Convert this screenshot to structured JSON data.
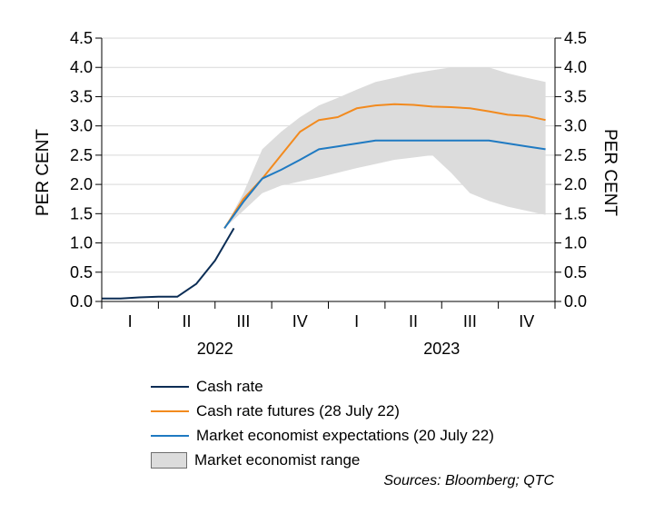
{
  "chart_data": {
    "type": "line",
    "title": "",
    "ylabel_left": "PER CENT",
    "ylabel_right": "PER CENT",
    "ylim": [
      0,
      4.5
    ],
    "yticks": [
      "0.0",
      "0.5",
      "1.0",
      "1.5",
      "2.0",
      "2.5",
      "3.0",
      "3.5",
      "4.0",
      "4.5"
    ],
    "quarters": [
      "I",
      "II",
      "III",
      "IV",
      "I",
      "II",
      "III",
      "IV"
    ],
    "years": [
      {
        "label": "2022",
        "quarter_span": [
          0,
          4
        ]
      },
      {
        "label": "2023",
        "quarter_span": [
          4,
          8
        ]
      }
    ],
    "x_units": "months since start of 2022",
    "xlim": [
      0,
      24
    ],
    "grid": "horizontal",
    "legend_position": "bottom",
    "series": [
      {
        "name": "Market economist range",
        "kind": "band",
        "color": "#dcdcdc",
        "upper": [
          [
            6.5,
            1.25
          ],
          [
            7.5,
            1.85
          ],
          [
            8.5,
            2.6
          ],
          [
            9.5,
            2.9
          ],
          [
            10.5,
            3.15
          ],
          [
            11.5,
            3.35
          ],
          [
            12.5,
            3.48
          ],
          [
            13.5,
            3.62
          ],
          [
            14.5,
            3.75
          ],
          [
            15.5,
            3.82
          ],
          [
            16.5,
            3.9
          ],
          [
            17.5,
            3.95
          ],
          [
            18.5,
            4.0
          ],
          [
            19.5,
            4.0
          ],
          [
            20.5,
            4.0
          ],
          [
            21.5,
            3.9
          ],
          [
            22.5,
            3.82
          ],
          [
            23.5,
            3.75
          ]
        ],
        "lower": [
          [
            6.5,
            1.25
          ],
          [
            7.5,
            1.55
          ],
          [
            8.5,
            1.85
          ],
          [
            9.5,
            1.98
          ],
          [
            10.5,
            2.05
          ],
          [
            11.5,
            2.12
          ],
          [
            12.5,
            2.2
          ],
          [
            13.5,
            2.28
          ],
          [
            14.5,
            2.35
          ],
          [
            15.5,
            2.42
          ],
          [
            16.5,
            2.46
          ],
          [
            17.5,
            2.5
          ],
          [
            18.5,
            2.2
          ],
          [
            19.5,
            1.85
          ],
          [
            20.5,
            1.72
          ],
          [
            21.5,
            1.62
          ],
          [
            22.5,
            1.55
          ],
          [
            23.5,
            1.48
          ]
        ]
      },
      {
        "name": "Cash rate",
        "kind": "line",
        "color": "#0b2d55",
        "points": [
          [
            0.0,
            0.05
          ],
          [
            1.0,
            0.05
          ],
          [
            2.0,
            0.07
          ],
          [
            3.0,
            0.08
          ],
          [
            4.0,
            0.08
          ],
          [
            5.0,
            0.3
          ],
          [
            6.0,
            0.7
          ],
          [
            7.0,
            1.25
          ]
        ]
      },
      {
        "name": "Cash rate futures (28 July 22)",
        "kind": "line",
        "color": "#f28a1e",
        "points": [
          [
            6.5,
            1.25
          ],
          [
            7.5,
            1.75
          ],
          [
            8.5,
            2.1
          ],
          [
            9.5,
            2.5
          ],
          [
            10.5,
            2.9
          ],
          [
            11.5,
            3.1
          ],
          [
            12.5,
            3.15
          ],
          [
            13.5,
            3.3
          ],
          [
            14.5,
            3.35
          ],
          [
            15.5,
            3.37
          ],
          [
            16.5,
            3.36
          ],
          [
            17.5,
            3.33
          ],
          [
            18.5,
            3.32
          ],
          [
            19.5,
            3.3
          ],
          [
            20.5,
            3.25
          ],
          [
            21.5,
            3.19
          ],
          [
            22.5,
            3.17
          ],
          [
            23.5,
            3.1
          ]
        ]
      },
      {
        "name": "Market economist expectations (20 July 22)",
        "kind": "line",
        "color": "#1f7ac2",
        "points": [
          [
            6.5,
            1.25
          ],
          [
            7.5,
            1.7
          ],
          [
            8.5,
            2.1
          ],
          [
            9.5,
            2.25
          ],
          [
            10.5,
            2.42
          ],
          [
            11.5,
            2.6
          ],
          [
            12.5,
            2.65
          ],
          [
            13.5,
            2.7
          ],
          [
            14.5,
            2.75
          ],
          [
            15.5,
            2.75
          ],
          [
            16.5,
            2.75
          ],
          [
            17.5,
            2.75
          ],
          [
            18.5,
            2.75
          ],
          [
            19.5,
            2.75
          ],
          [
            20.5,
            2.75
          ],
          [
            21.5,
            2.7
          ],
          [
            22.5,
            2.65
          ],
          [
            23.5,
            2.6
          ]
        ]
      }
    ]
  },
  "legend": {
    "items": [
      {
        "label": "Cash rate",
        "kind": "line",
        "color": "#0b2d55"
      },
      {
        "label": "Cash rate futures (28 July 22)",
        "kind": "line",
        "color": "#f28a1e"
      },
      {
        "label": "Market economist expectations (20 July 22)",
        "kind": "line",
        "color": "#1f7ac2"
      },
      {
        "label": "Market economist range",
        "kind": "box",
        "color": "#dcdcdc"
      }
    ]
  },
  "source": "Sources: Bloomberg; QTC"
}
